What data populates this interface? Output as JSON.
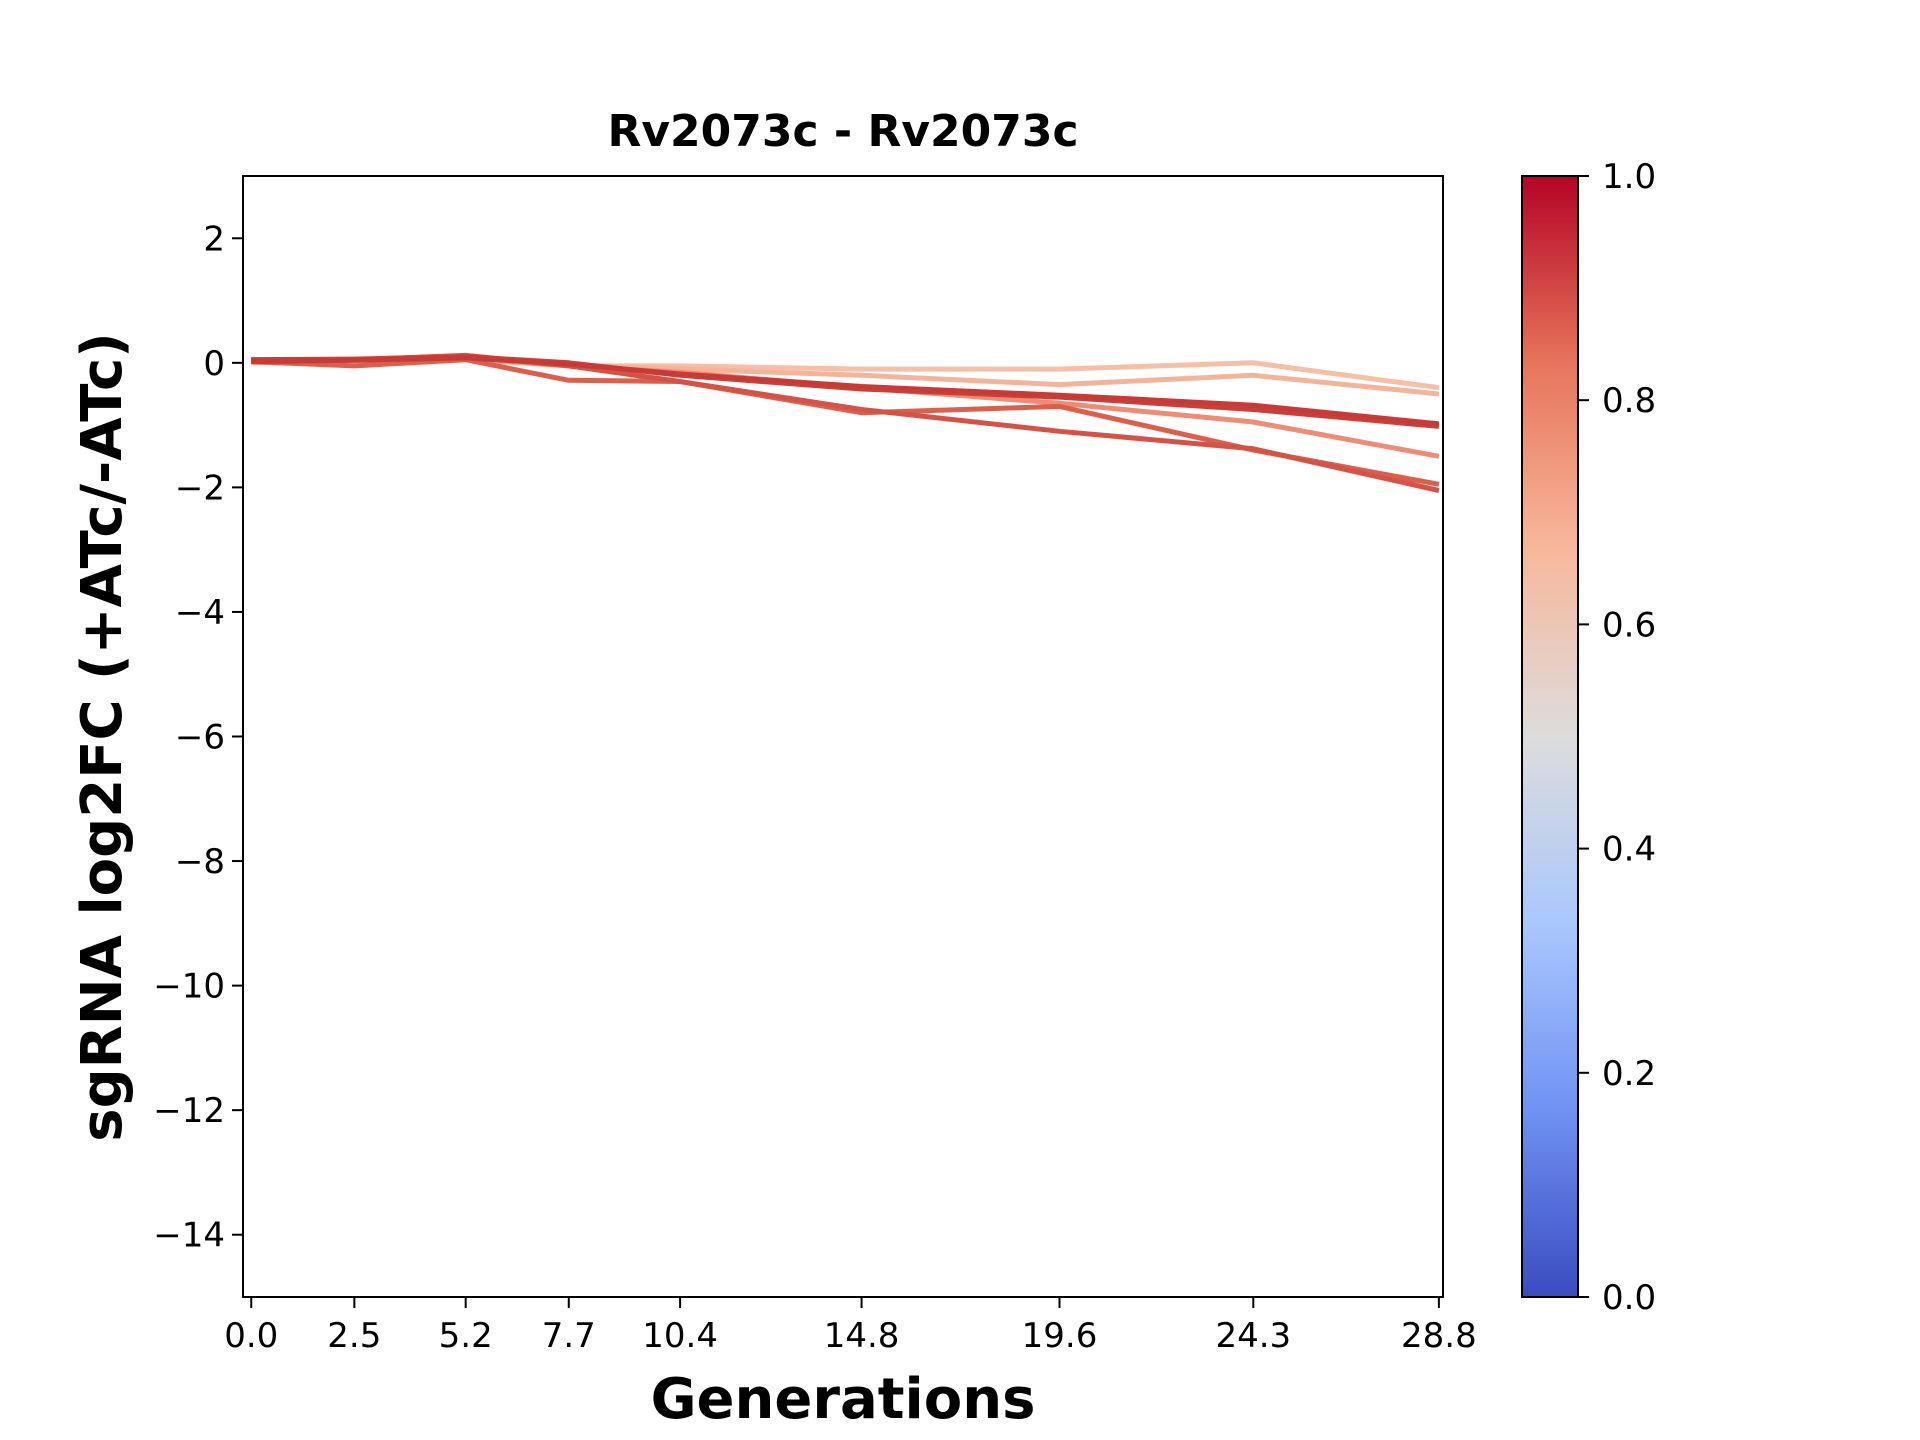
{
  "chart_data": {
    "type": "line",
    "title": "Rv2073c - Rv2073c",
    "xlabel": "Generations",
    "ylabel": "sgRNA log2FC (+ATc/-ATc)",
    "x": [
      0.0,
      2.5,
      5.2,
      7.7,
      10.4,
      14.8,
      19.6,
      24.3,
      28.8
    ],
    "x_tick_labels": [
      "0.0",
      "2.5",
      "5.2",
      "7.7",
      "10.4",
      "14.8",
      "19.6",
      "24.3",
      "28.8"
    ],
    "xlim": [
      -0.2,
      28.9
    ],
    "ylim": [
      -15,
      3
    ],
    "y_ticks": [
      2,
      0,
      -2,
      -4,
      -6,
      -8,
      -10,
      -12,
      -14
    ],
    "y_tick_labels": [
      "2",
      "0",
      "−2",
      "−4",
      "−6",
      "−8",
      "−10",
      "−12",
      "−14"
    ],
    "grid": false,
    "legend": "none",
    "colormap": {
      "name": "coolwarm",
      "range": [
        0.0,
        1.0
      ],
      "ticks": [
        0.0,
        0.2,
        0.4,
        0.6,
        0.8,
        1.0
      ],
      "tick_labels": [
        "0.0",
        "0.2",
        "0.4",
        "0.6",
        "0.8",
        "1.0"
      ],
      "stops": [
        "#3b4cc0",
        "#6f92f3",
        "#aac7fd",
        "#dddcdc",
        "#f7b89c",
        "#e7745b",
        "#b40426"
      ]
    },
    "series": [
      {
        "color_value": 0.68,
        "color": "#f6bfa6",
        "values": [
          0.0,
          0.02,
          0.05,
          -0.05,
          -0.05,
          -0.1,
          -0.1,
          0.0,
          -0.4
        ]
      },
      {
        "color_value": 0.7,
        "color": "#f4b49a",
        "values": [
          0.05,
          0.05,
          0.08,
          -0.03,
          -0.1,
          -0.2,
          -0.35,
          -0.2,
          -0.5
        ]
      },
      {
        "color_value": 0.78,
        "color": "#ee8d74",
        "values": [
          0.03,
          0.04,
          0.08,
          -0.05,
          -0.15,
          -0.4,
          -0.65,
          -0.95,
          -1.5
        ]
      },
      {
        "color_value": 0.86,
        "color": "#dd5f4b",
        "values": [
          0.02,
          -0.05,
          0.05,
          -0.28,
          -0.3,
          -0.8,
          -0.7,
          -1.4,
          -1.95
        ]
      },
      {
        "color_value": 0.88,
        "color": "#d65244",
        "values": [
          0.05,
          0.05,
          0.12,
          -0.05,
          -0.3,
          -0.75,
          -1.1,
          -1.38,
          -2.05
        ]
      },
      {
        "color_value": 0.92,
        "color": "#cc3f39",
        "values": [
          0.05,
          0.06,
          0.1,
          0.0,
          -0.2,
          -0.42,
          -0.55,
          -0.75,
          -1.02
        ]
      },
      {
        "color_value": 0.93,
        "color": "#c93a36",
        "values": [
          0.02,
          0.04,
          0.08,
          -0.02,
          -0.18,
          -0.38,
          -0.52,
          -0.68,
          -0.98
        ]
      }
    ]
  }
}
